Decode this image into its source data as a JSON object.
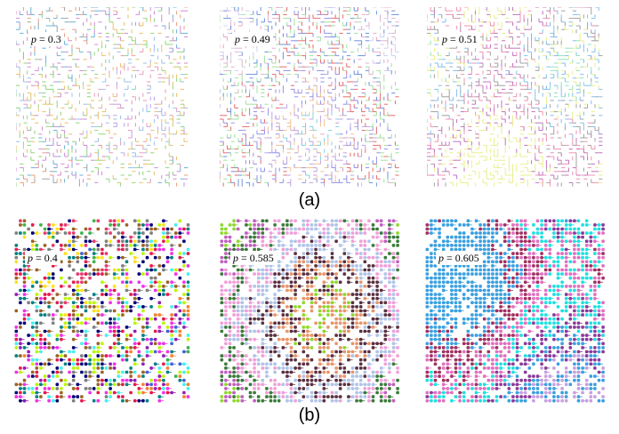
{
  "rows": [
    {
      "caption": "(a)",
      "panels": [
        {
          "p_symbol": "p",
          "p_text": " = 0.3",
          "style": "bond",
          "colors": [
            "#7fd6b8",
            "#b7a0e8",
            "#e89ab8",
            "#9ac0e8",
            "#e8c06a",
            "#8fd67a",
            "#d08ad6",
            "#6ab0d6",
            "#e8a07a",
            "#a0a0a0"
          ]
        },
        {
          "p_symbol": "p",
          "p_text": " = 0.49",
          "style": "bond",
          "colors": [
            "#f0a0c0",
            "#80d0e0",
            "#f0c090",
            "#c0a0e0",
            "#9090e8",
            "#e86a6a",
            "#a0e0a0",
            "#6a90e0",
            "#e0b0d0",
            "#d0d0f0"
          ]
        },
        {
          "p_symbol": "p",
          "p_text": " = 0.51",
          "style": "bond",
          "colors": [
            "#e8ee8a",
            "#e8ee8a",
            "#e8ee8a",
            "#e8ee8a",
            "#c070c0",
            "#f090b0",
            "#a0a0a0",
            "#80c0f0",
            "#e8ee8a",
            "#90e0c0"
          ]
        }
      ]
    },
    {
      "caption": "(b)",
      "panels": [
        {
          "p_symbol": "p",
          "p_text": " = 0.4",
          "style": "site",
          "colors": [
            "#e63c6e",
            "#3cb44b",
            "#4363d8",
            "#f58231",
            "#911eb4",
            "#46f0f0",
            "#f032e6",
            "#bcf60c",
            "#008080",
            "#e6194b",
            "#9a6324",
            "#000075",
            "#808080",
            "#ffe119"
          ]
        },
        {
          "p_symbol": "p",
          "p_text": " = 0.585",
          "style": "site",
          "colors": [
            "#8fd82e",
            "#8fd82e",
            "#e8956a",
            "#5a3040",
            "#b0c4e8",
            "#f0a0d8",
            "#3a7a3a",
            "#c060c0",
            "#8fd82e",
            "#a080e0"
          ]
        },
        {
          "p_symbol": "p",
          "p_text": " = 0.605",
          "style": "site",
          "colors": [
            "#3aa0e0",
            "#3aa0e0",
            "#3aa0e0",
            "#3aa0e0",
            "#a03060",
            "#e070c0",
            "#20e0e0",
            "#8a3a9a",
            "#3aa0e0",
            "#c8a0e0"
          ]
        }
      ]
    }
  ]
}
